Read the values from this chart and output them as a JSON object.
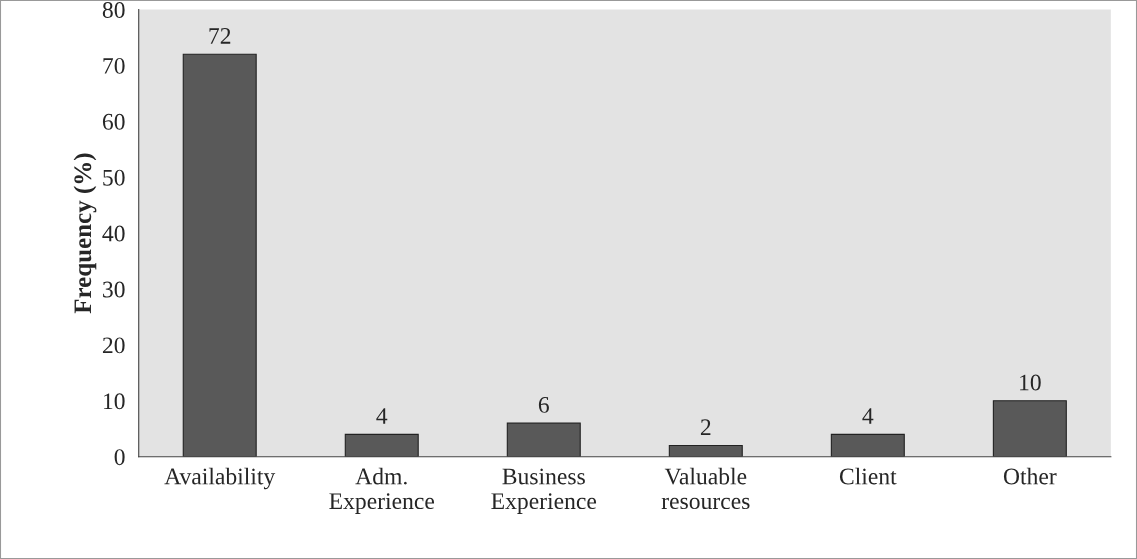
{
  "chart_data": {
    "type": "bar",
    "ylabel": "Frequency (%)",
    "categories": [
      "Availability",
      "Adm.\nExperience",
      "Business\nExperience",
      "Valuable\nresources",
      "Client",
      "Other"
    ],
    "values": [
      72,
      4,
      6,
      2,
      4,
      10
    ],
    "color": "#595959",
    "ylim": [
      0,
      80
    ],
    "yticks": [
      0,
      10,
      20,
      30,
      40,
      50,
      60,
      70,
      80
    ],
    "data_labels": true,
    "grid": false,
    "legend": false
  }
}
